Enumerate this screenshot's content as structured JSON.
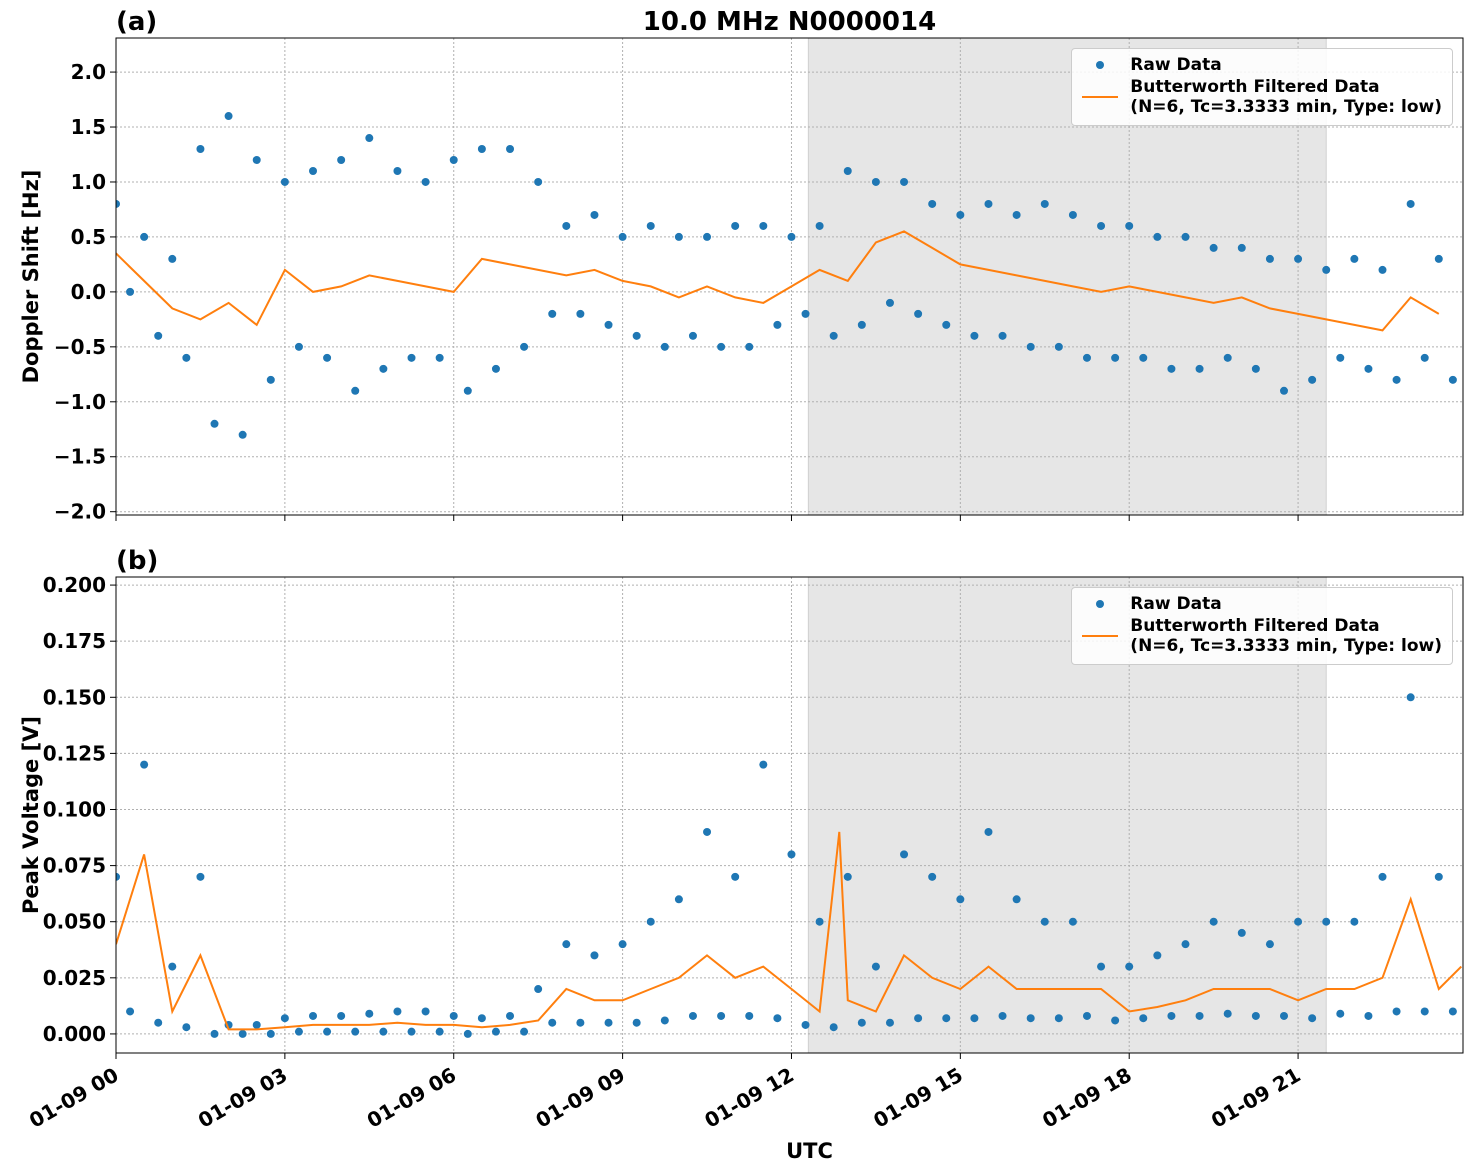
{
  "chart_data": [
    {
      "type": "scatter",
      "title": "10.0 MHz N0000014",
      "panel_label": "(a)",
      "y_label": "Doppler Shift [Hz]",
      "xlim": [
        0,
        23.93
      ],
      "xticks": [
        0,
        3,
        6,
        9,
        12,
        15,
        18,
        21
      ],
      "ylim": [
        -2.03,
        2.31
      ],
      "yticks": [
        {
          "value": -2.0,
          "label": "−2.0"
        },
        {
          "value": -1.5,
          "label": "−1.5"
        },
        {
          "value": -1.0,
          "label": "−1.0"
        },
        {
          "value": -0.5,
          "label": "−0.5"
        },
        {
          "value": 0.0,
          "label": "0.0"
        },
        {
          "value": 0.5,
          "label": "0.5"
        },
        {
          "value": 1.0,
          "label": "1.0"
        },
        {
          "value": 1.5,
          "label": "1.5"
        },
        {
          "value": 2.0,
          "label": "2.0"
        }
      ],
      "grid": true,
      "legend": "upper right",
      "shade": [
        12.3,
        21.5
      ],
      "shade_color": "#e6e6e6",
      "series": [
        {
          "name": "Raw Data",
          "color": "#1f77b4",
          "style": "points",
          "x": [
            0,
            0.25,
            0.5,
            0.75,
            1,
            1.25,
            1.5,
            1.75,
            2,
            2.25,
            2.5,
            2.75,
            3,
            3.25,
            3.5,
            3.75,
            4,
            4.25,
            4.5,
            4.75,
            5,
            5.25,
            5.5,
            5.75,
            6,
            6.25,
            6.5,
            6.75,
            7,
            7.25,
            7.5,
            7.75,
            8,
            8.25,
            8.5,
            8.75,
            9,
            9.25,
            9.5,
            9.75,
            10,
            10.25,
            10.5,
            10.75,
            11,
            11.25,
            11.5,
            11.75,
            12,
            12.25,
            12.5,
            12.75,
            13,
            13.25,
            13.5,
            13.75,
            14,
            14.25,
            14.5,
            14.75,
            15,
            15.25,
            15.5,
            15.75,
            16,
            16.25,
            16.5,
            16.75,
            17,
            17.25,
            17.5,
            17.75,
            18,
            18.25,
            18.5,
            18.75,
            19,
            19.25,
            19.5,
            19.75,
            20,
            20.25,
            20.5,
            20.75,
            21,
            21.25,
            21.5,
            21.75,
            22,
            22.25,
            22.5,
            22.75,
            23,
            23.25,
            23.5,
            23.75
          ],
          "values": [
            0.8,
            0.0,
            0.5,
            -0.4,
            0.3,
            -0.6,
            1.3,
            -1.2,
            1.6,
            -1.3,
            1.2,
            -0.8,
            1.0,
            -0.5,
            1.1,
            -0.6,
            1.2,
            -0.9,
            1.4,
            -0.7,
            1.1,
            -0.6,
            1.0,
            -0.6,
            1.2,
            -0.9,
            1.3,
            -0.7,
            1.3,
            -0.5,
            1.0,
            -0.2,
            0.6,
            -0.2,
            0.7,
            -0.3,
            0.5,
            -0.4,
            0.6,
            -0.5,
            0.5,
            -0.4,
            0.5,
            -0.5,
            0.6,
            -0.5,
            0.6,
            -0.3,
            0.5,
            -0.2,
            0.6,
            -0.4,
            1.1,
            -0.3,
            1.0,
            -0.1,
            1.0,
            -0.2,
            0.8,
            -0.3,
            0.7,
            -0.4,
            0.8,
            -0.4,
            0.7,
            -0.5,
            0.8,
            -0.5,
            0.7,
            -0.6,
            0.6,
            -0.6,
            0.6,
            -0.6,
            0.5,
            -0.7,
            0.5,
            -0.7,
            0.4,
            -0.6,
            0.4,
            -0.7,
            0.3,
            -0.9,
            0.3,
            -0.8,
            0.2,
            -0.6,
            0.3,
            -0.7,
            0.2,
            -0.8,
            0.8,
            -0.6,
            0.3,
            -0.8
          ]
        },
        {
          "name": "Butterworth Filtered Data\n(N=6, Tc=3.3333 min, Type: low)",
          "color": "#ff7f0e",
          "style": "line",
          "x": [
            0,
            0.5,
            1,
            1.5,
            2,
            2.5,
            3,
            3.5,
            4,
            4.5,
            5,
            5.5,
            6,
            6.5,
            7,
            7.5,
            8,
            8.5,
            9,
            9.5,
            10,
            10.5,
            11,
            11.5,
            12,
            12.5,
            13,
            13.5,
            14,
            14.5,
            15,
            15.5,
            16,
            16.5,
            17,
            17.5,
            18,
            18.5,
            19,
            19.5,
            20,
            20.5,
            21,
            21.5,
            22,
            22.5,
            23,
            23.5
          ],
          "values": [
            0.35,
            0.1,
            -0.15,
            -0.25,
            -0.1,
            -0.3,
            0.2,
            0.0,
            0.05,
            0.15,
            0.1,
            0.05,
            0.0,
            0.3,
            0.25,
            0.2,
            0.15,
            0.2,
            0.1,
            0.05,
            -0.05,
            0.05,
            -0.05,
            -0.1,
            0.05,
            0.2,
            0.1,
            0.45,
            0.55,
            0.4,
            0.25,
            0.2,
            0.15,
            0.1,
            0.05,
            0.0,
            0.05,
            0.0,
            -0.05,
            -0.1,
            -0.05,
            -0.15,
            -0.2,
            -0.25,
            -0.3,
            -0.35,
            -0.05,
            -0.2
          ]
        }
      ]
    },
    {
      "type": "scatter",
      "panel_label": "(b)",
      "y_label": "Peak Voltage [V]",
      "x_label": "UTC",
      "xlim": [
        0,
        23.93
      ],
      "xticks": [
        {
          "value": 0,
          "label": "01-09 00"
        },
        {
          "value": 3,
          "label": "01-09 03"
        },
        {
          "value": 6,
          "label": "01-09 06"
        },
        {
          "value": 9,
          "label": "01-09 09"
        },
        {
          "value": 12,
          "label": "01-09 12"
        },
        {
          "value": 15,
          "label": "01-09 15"
        },
        {
          "value": 18,
          "label": "01-09 18"
        },
        {
          "value": 21,
          "label": "01-09 21"
        }
      ],
      "ylim": [
        -0.0085,
        0.2036
      ],
      "yticks": [
        {
          "value": 0.0,
          "label": "0.000"
        },
        {
          "value": 0.025,
          "label": "0.025"
        },
        {
          "value": 0.05,
          "label": "0.050"
        },
        {
          "value": 0.075,
          "label": "0.075"
        },
        {
          "value": 0.1,
          "label": "0.100"
        },
        {
          "value": 0.125,
          "label": "0.125"
        },
        {
          "value": 0.15,
          "label": "0.150"
        },
        {
          "value": 0.175,
          "label": "0.175"
        },
        {
          "value": 0.2,
          "label": "0.200"
        }
      ],
      "grid": true,
      "legend": "upper right",
      "shade": [
        12.3,
        21.5
      ],
      "shade_color": "#e6e6e6",
      "series": [
        {
          "name": "Raw Data",
          "color": "#1f77b4",
          "style": "points",
          "x": [
            0,
            0.25,
            0.5,
            0.75,
            1,
            1.25,
            1.5,
            1.75,
            2,
            2.25,
            2.5,
            2.75,
            3,
            3.25,
            3.5,
            3.75,
            4,
            4.25,
            4.5,
            4.75,
            5,
            5.25,
            5.5,
            5.75,
            6,
            6.25,
            6.5,
            6.75,
            7,
            7.25,
            7.5,
            7.75,
            8,
            8.25,
            8.5,
            8.75,
            9,
            9.25,
            9.5,
            9.75,
            10,
            10.25,
            10.5,
            10.75,
            11,
            11.25,
            11.5,
            11.75,
            12,
            12.25,
            12.5,
            12.75,
            13,
            13.25,
            13.5,
            13.75,
            14,
            14.25,
            14.5,
            14.75,
            15,
            15.25,
            15.5,
            15.75,
            16,
            16.25,
            16.5,
            16.75,
            17,
            17.25,
            17.5,
            17.75,
            18,
            18.25,
            18.5,
            18.75,
            19,
            19.25,
            19.5,
            19.75,
            20,
            20.25,
            20.5,
            20.75,
            21,
            21.25,
            21.5,
            21.75,
            22,
            22.25,
            22.5,
            22.75,
            23,
            23.25,
            23.5,
            23.75
          ],
          "values": [
            0.07,
            0.01,
            0.12,
            0.005,
            0.03,
            0.003,
            0.07,
            0.0,
            0.004,
            0.0,
            0.004,
            0.0,
            0.007,
            0.001,
            0.008,
            0.001,
            0.008,
            0.001,
            0.009,
            0.001,
            0.01,
            0.001,
            0.01,
            0.001,
            0.008,
            0.0,
            0.007,
            0.001,
            0.008,
            0.001,
            0.02,
            0.005,
            0.04,
            0.005,
            0.035,
            0.005,
            0.04,
            0.005,
            0.05,
            0.006,
            0.06,
            0.008,
            0.09,
            0.008,
            0.07,
            0.008,
            0.12,
            0.007,
            0.08,
            0.004,
            0.05,
            0.003,
            0.07,
            0.005,
            0.03,
            0.005,
            0.08,
            0.007,
            0.07,
            0.007,
            0.06,
            0.007,
            0.09,
            0.008,
            0.06,
            0.007,
            0.05,
            0.007,
            0.05,
            0.008,
            0.03,
            0.006,
            0.03,
            0.007,
            0.035,
            0.008,
            0.04,
            0.008,
            0.05,
            0.009,
            0.045,
            0.008,
            0.04,
            0.008,
            0.05,
            0.007,
            0.05,
            0.009,
            0.05,
            0.008,
            0.07,
            0.01,
            0.15,
            0.01,
            0.07,
            0.01
          ]
        },
        {
          "name": "Butterworth Filtered Data\n(N=6, Tc=3.3333 min, Type: low)",
          "color": "#ff7f0e",
          "style": "line",
          "x": [
            0,
            0.5,
            1,
            1.5,
            2,
            2.5,
            3,
            3.5,
            4,
            4.5,
            5,
            5.5,
            6,
            6.5,
            7,
            7.5,
            8,
            8.5,
            9,
            9.5,
            10,
            10.5,
            11,
            11.5,
            12,
            12.5,
            12.85,
            13,
            13.5,
            14,
            14.5,
            15,
            15.5,
            16,
            16.5,
            17,
            17.5,
            18,
            18.5,
            19,
            19.5,
            20,
            20.5,
            21,
            21.5,
            22,
            22.5,
            23,
            23.5,
            23.9
          ],
          "values": [
            0.04,
            0.08,
            0.01,
            0.035,
            0.002,
            0.002,
            0.003,
            0.004,
            0.004,
            0.004,
            0.005,
            0.004,
            0.004,
            0.003,
            0.004,
            0.006,
            0.02,
            0.015,
            0.015,
            0.02,
            0.025,
            0.035,
            0.025,
            0.03,
            0.02,
            0.01,
            0.09,
            0.015,
            0.01,
            0.035,
            0.025,
            0.02,
            0.03,
            0.02,
            0.02,
            0.02,
            0.02,
            0.01,
            0.012,
            0.015,
            0.02,
            0.02,
            0.02,
            0.015,
            0.02,
            0.02,
            0.025,
            0.06,
            0.02,
            0.03
          ]
        }
      ]
    }
  ]
}
